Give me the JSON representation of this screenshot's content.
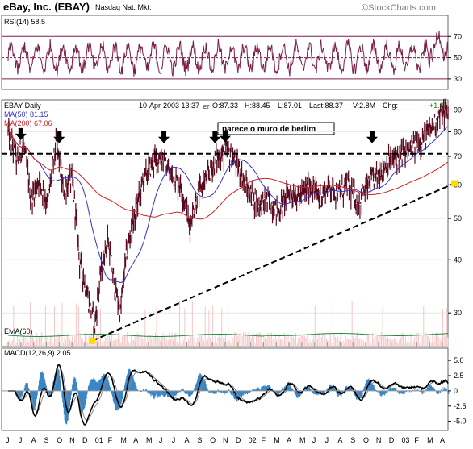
{
  "header": {
    "title": "eBay, Inc. (EBAY)",
    "exchange": "Nasdaq Nat. Mkt.",
    "watermark": "©StockCharts.com"
  },
  "chart_data": [
    {
      "id": "rsi",
      "type": "line",
      "label": "RSI(14) 58.5",
      "ylim": [
        20,
        90
      ],
      "yticks": [
        30,
        50,
        70
      ],
      "reference_lines": [
        70,
        50,
        30
      ],
      "color": "#7b1f4a"
    },
    {
      "id": "price",
      "type": "line",
      "label": "EBAY Daily",
      "info": {
        "date": "10-Apr-2003 13:37",
        "tz": "ET",
        "open": "O:87.33",
        "high": "H:88.45",
        "low": "L:87.01",
        "last": "Last:88.37",
        "volume": "V:2.8M",
        "change_label": "Chg:",
        "change": "+1.41"
      },
      "scale": "log",
      "ylim": [
        25,
        95
      ],
      "yticks": [
        30,
        40,
        50,
        60,
        70,
        80,
        90
      ],
      "x_months": [
        "J",
        "J",
        "A",
        "S",
        "O",
        "N",
        "D",
        "01",
        "F",
        "M",
        "A",
        "M",
        "J",
        "J",
        "A",
        "S",
        "O",
        "N",
        "D",
        "02",
        "F",
        "M",
        "A",
        "M",
        "J",
        "J",
        "A",
        "S",
        "O",
        "N",
        "D",
        "03",
        "F",
        "M",
        "A"
      ],
      "series": [
        {
          "name": "MA(50) 81.15",
          "color": "#3333cc"
        },
        {
          "name": "MA(200) 67.06",
          "color": "#cc2222"
        },
        {
          "name": "EMA(60)",
          "color": "#228844"
        }
      ],
      "price_keypoints": [
        {
          "month": 0,
          "value": 80
        },
        {
          "month": 0.7,
          "value": 68
        },
        {
          "month": 1.2,
          "value": 75
        },
        {
          "month": 1.8,
          "value": 55
        },
        {
          "month": 2.4,
          "value": 62
        },
        {
          "month": 3.1,
          "value": 54
        },
        {
          "month": 3.8,
          "value": 76
        },
        {
          "month": 4.3,
          "value": 58
        },
        {
          "month": 5.0,
          "value": 62
        },
        {
          "month": 5.6,
          "value": 40
        },
        {
          "month": 6.3,
          "value": 32
        },
        {
          "month": 6.8,
          "value": 28
        },
        {
          "month": 7.3,
          "value": 38
        },
        {
          "month": 7.8,
          "value": 45
        },
        {
          "month": 8.3,
          "value": 35
        },
        {
          "month": 8.8,
          "value": 30
        },
        {
          "month": 9.3,
          "value": 42
        },
        {
          "month": 10.0,
          "value": 52
        },
        {
          "month": 10.6,
          "value": 62
        },
        {
          "month": 11.4,
          "value": 68
        },
        {
          "month": 12.0,
          "value": 70
        },
        {
          "month": 12.6,
          "value": 64
        },
        {
          "month": 13.5,
          "value": 60
        },
        {
          "month": 14.2,
          "value": 48
        },
        {
          "month": 14.8,
          "value": 56
        },
        {
          "month": 15.5,
          "value": 62
        },
        {
          "month": 16.3,
          "value": 69
        },
        {
          "month": 17.2,
          "value": 72
        },
        {
          "month": 18.0,
          "value": 66
        },
        {
          "month": 18.8,
          "value": 58
        },
        {
          "month": 19.6,
          "value": 54
        },
        {
          "month": 20.4,
          "value": 55
        },
        {
          "month": 21.2,
          "value": 52
        },
        {
          "month": 22.0,
          "value": 58
        },
        {
          "month": 22.8,
          "value": 56
        },
        {
          "month": 23.6,
          "value": 60
        },
        {
          "month": 24.4,
          "value": 56
        },
        {
          "month": 25.2,
          "value": 60
        },
        {
          "month": 25.9,
          "value": 57
        },
        {
          "month": 26.6,
          "value": 60
        },
        {
          "month": 27.4,
          "value": 54
        },
        {
          "month": 28.2,
          "value": 60
        },
        {
          "month": 29.0,
          "value": 64
        },
        {
          "month": 29.8,
          "value": 68
        },
        {
          "month": 30.6,
          "value": 70
        },
        {
          "month": 31.4,
          "value": 72
        },
        {
          "month": 32.2,
          "value": 76
        },
        {
          "month": 33.0,
          "value": 80
        },
        {
          "month": 33.7,
          "value": 87
        },
        {
          "month": 34.1,
          "value": 89
        },
        {
          "month": 34.5,
          "value": 88
        }
      ],
      "resistance": {
        "value": 71
      },
      "trendline": {
        "from": {
          "month": 6.6,
          "value": 25.8
        },
        "to": {
          "month": 35.0,
          "value": 60.5
        }
      },
      "arrows_months": [
        1.0,
        4.0,
        12.2,
        16.2,
        17.0,
        28.5
      ],
      "annotation": "parece o muro de berlim"
    },
    {
      "id": "macd",
      "type": "line",
      "label": "MACD(12,26,9) 2.05",
      "ylim": [
        -6.5,
        7
      ],
      "yticks": [
        5.0,
        2.5,
        0.0,
        -2.5,
        -5.0
      ],
      "tick_labels": [
        "5.0",
        "2.5",
        "0",
        "-2.5",
        "-5.0"
      ],
      "histogram_color": "#3b86c6"
    }
  ]
}
